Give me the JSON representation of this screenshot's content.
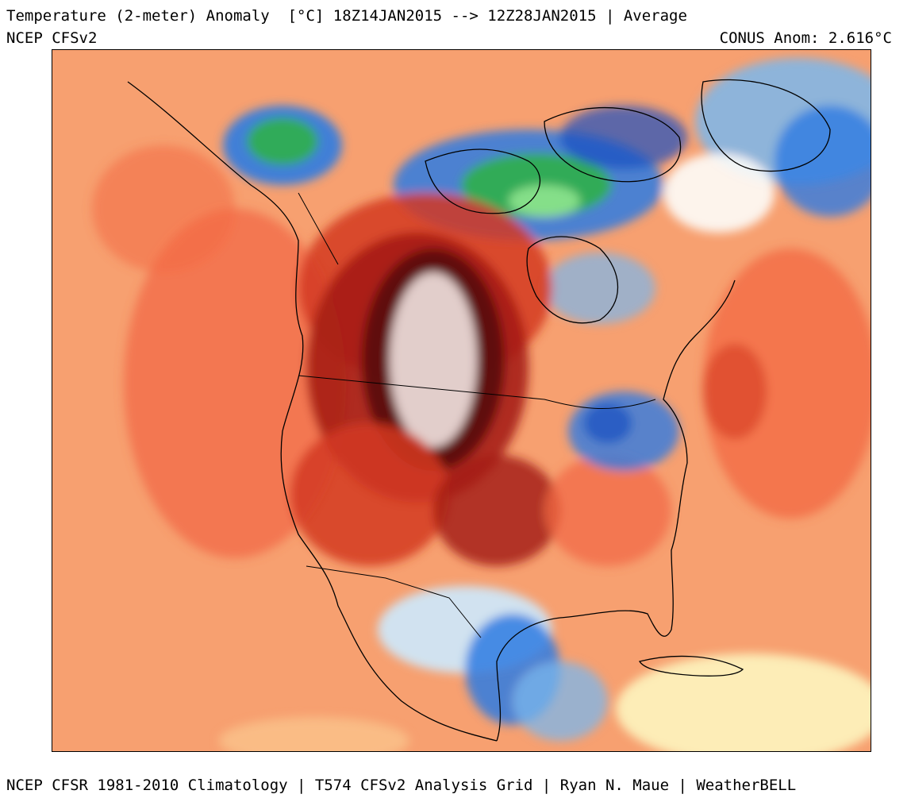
{
  "header": {
    "title": "Temperature (2-meter) Anomaly  [°C] 18Z14JAN2015 --> 12Z28JAN2015 | Average",
    "model": "NCEP CFSv2",
    "conus_anomaly": "CONUS Anom: 2.616°C"
  },
  "footer": {
    "credit": "NCEP CFSR 1981-2010 Climatology | T574 CFSv2 Analysis Grid | Ryan N. Maue | WeatherBELL"
  },
  "colors": {
    "ocean_warm": "#f7a070",
    "warm": "#f26a45",
    "hot": "#d43a22",
    "very_hot": "#a61d14",
    "extreme_warm": "#5c0f0a",
    "extreme_light": "#e9d9d6",
    "mild_warm": "#fbc88e",
    "near_zero": "#fdf5bf",
    "near_zero_white": "#fdfdf9",
    "cool_light": "#cfe6f7",
    "cool": "#7bb7ec",
    "cold": "#2f7be2",
    "very_cold": "#1a4fc0",
    "extreme_cold": "#2fb04a",
    "extreme_cold_2": "#8fe48f",
    "extreme_cold_3": "#a88fd8",
    "coastline": "#000000"
  }
}
